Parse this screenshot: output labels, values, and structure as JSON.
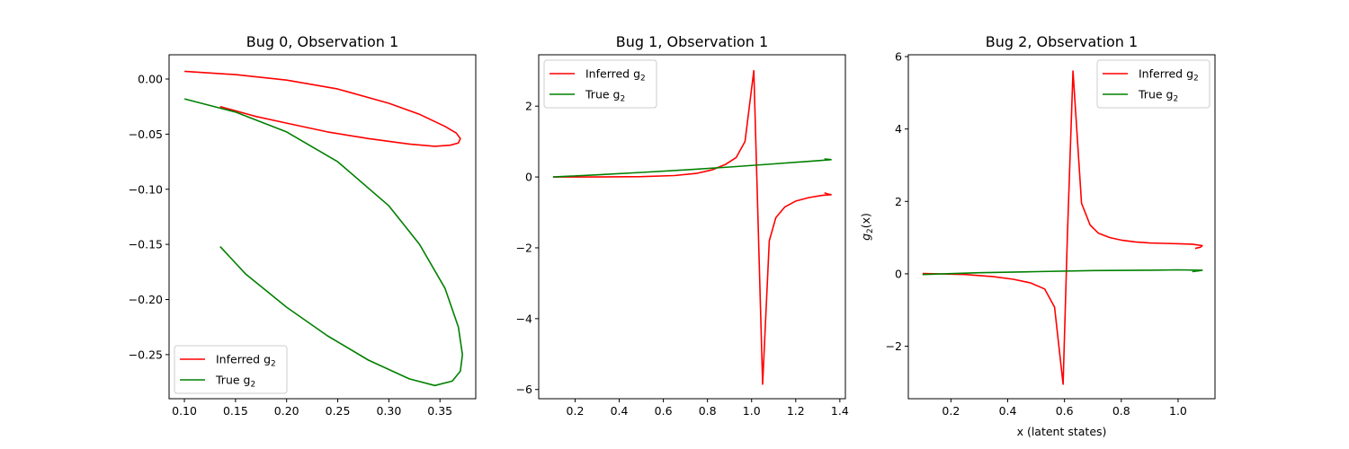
{
  "chart_data": [
    {
      "type": "line",
      "title": "Bug 0, Observation 1",
      "xlabel": "",
      "ylabel": "",
      "xlim": [
        0.085,
        0.385
      ],
      "ylim": [
        -0.29,
        0.022
      ],
      "xticks": [
        0.1,
        0.15,
        0.2,
        0.25,
        0.3,
        0.35
      ],
      "xtick_labels": [
        "0.10",
        "0.15",
        "0.20",
        "0.25",
        "0.30",
        "0.35"
      ],
      "yticks": [
        0.0,
        -0.05,
        -0.1,
        -0.15,
        -0.2,
        -0.25
      ],
      "ytick_labels": [
        "0.00",
        "−0.05",
        "−0.10",
        "−0.15",
        "−0.20",
        "−0.25"
      ],
      "legend": {
        "loc": "lower-left",
        "entries": [
          {
            "label": "Inferred g",
            "sub": "2",
            "color": "#ff0000"
          },
          {
            "label": "True g",
            "sub": "2",
            "color": "#008000"
          }
        ]
      },
      "series": [
        {
          "name": "Inferred g2",
          "color": "#ff0000",
          "x": [
            0.1,
            0.15,
            0.2,
            0.25,
            0.3,
            0.33,
            0.355,
            0.366,
            0.37,
            0.368,
            0.36,
            0.345,
            0.32,
            0.28,
            0.24,
            0.2,
            0.17,
            0.135
          ],
          "y": [
            0.007,
            0.004,
            -0.001,
            -0.009,
            -0.022,
            -0.032,
            -0.043,
            -0.049,
            -0.054,
            -0.058,
            -0.06,
            -0.061,
            -0.059,
            -0.054,
            -0.048,
            -0.04,
            -0.034,
            -0.025
          ]
        },
        {
          "name": "True g2",
          "color": "#008000",
          "x": [
            0.1,
            0.15,
            0.2,
            0.25,
            0.3,
            0.33,
            0.355,
            0.368,
            0.372,
            0.37,
            0.362,
            0.345,
            0.32,
            0.28,
            0.24,
            0.2,
            0.16,
            0.135
          ],
          "y": [
            -0.018,
            -0.03,
            -0.048,
            -0.075,
            -0.115,
            -0.15,
            -0.19,
            -0.225,
            -0.25,
            -0.265,
            -0.274,
            -0.278,
            -0.272,
            -0.255,
            -0.233,
            -0.207,
            -0.177,
            -0.152
          ]
        }
      ]
    },
    {
      "type": "line",
      "title": "Bug 1, Observation 1",
      "xlabel": "",
      "ylabel": "",
      "xlim": [
        0.035,
        1.425
      ],
      "ylim": [
        -6.26,
        3.45
      ],
      "xticks": [
        0.2,
        0.4,
        0.6,
        0.8,
        1.0,
        1.2,
        1.4
      ],
      "xtick_labels": [
        "0.2",
        "0.4",
        "0.6",
        "0.8",
        "1.0",
        "1.2",
        "1.4"
      ],
      "yticks": [
        2,
        0,
        -2,
        -4,
        -6
      ],
      "ytick_labels": [
        "2",
        "0",
        "−2",
        "−4",
        "−6"
      ],
      "legend": {
        "loc": "upper-left",
        "entries": [
          {
            "label": "Inferred g",
            "sub": "2",
            "color": "#ff0000"
          },
          {
            "label": "True g",
            "sub": "2",
            "color": "#008000"
          }
        ]
      },
      "series": [
        {
          "name": "Inferred g2",
          "color": "#ff0000",
          "x": [
            0.1,
            0.3,
            0.5,
            0.65,
            0.75,
            0.82,
            0.88,
            0.93,
            0.97,
            1.01,
            1.05,
            1.08,
            1.11,
            1.15,
            1.2,
            1.26,
            1.32,
            1.36,
            1.345,
            1.33
          ],
          "y": [
            0.0,
            0.0,
            0.01,
            0.04,
            0.1,
            0.2,
            0.35,
            0.55,
            1.0,
            3.0,
            -5.85,
            -1.8,
            -1.15,
            -0.85,
            -0.68,
            -0.58,
            -0.52,
            -0.5,
            -0.48,
            -0.45
          ]
        },
        {
          "name": "True g2",
          "color": "#008000",
          "x": [
            0.1,
            0.3,
            0.5,
            0.7,
            0.9,
            1.1,
            1.3,
            1.36,
            1.35,
            1.33
          ],
          "y": [
            0.0,
            0.06,
            0.13,
            0.2,
            0.28,
            0.37,
            0.46,
            0.49,
            0.5,
            0.51
          ]
        }
      ]
    },
    {
      "type": "line",
      "title": "Bug 2, Observation 1",
      "xlabel": "x (latent states)",
      "ylabel": "g2(x)",
      "xlim": [
        0.05,
        1.13
      ],
      "ylim": [
        -3.45,
        6.05
      ],
      "xticks": [
        0.2,
        0.4,
        0.6,
        0.8,
        1.0
      ],
      "xtick_labels": [
        "0.2",
        "0.4",
        "0.6",
        "0.8",
        "1.0"
      ],
      "yticks": [
        6,
        4,
        2,
        0,
        -2
      ],
      "ytick_labels": [
        "6",
        "4",
        "2",
        "0",
        "−2"
      ],
      "legend": {
        "loc": "upper-right",
        "entries": [
          {
            "label": "Inferred g",
            "sub": "2",
            "color": "#ff0000"
          },
          {
            "label": "True g",
            "sub": "2",
            "color": "#008000"
          }
        ]
      },
      "series": [
        {
          "name": "Inferred g2",
          "color": "#ff0000",
          "x": [
            0.1,
            0.25,
            0.35,
            0.42,
            0.48,
            0.53,
            0.565,
            0.595,
            0.61,
            0.63,
            0.66,
            0.69,
            0.72,
            0.76,
            0.8,
            0.85,
            0.9,
            0.95,
            1.0,
            1.05,
            1.085,
            1.08,
            1.06
          ],
          "y": [
            0.01,
            -0.02,
            -0.08,
            -0.15,
            -0.25,
            -0.42,
            -0.92,
            -3.05,
            1.0,
            5.6,
            1.95,
            1.35,
            1.12,
            1.0,
            0.93,
            0.88,
            0.85,
            0.84,
            0.83,
            0.82,
            0.78,
            0.74,
            0.7
          ]
        },
        {
          "name": "True g2",
          "color": "#008000",
          "x": [
            0.1,
            0.3,
            0.5,
            0.7,
            0.9,
            1.0,
            1.085,
            1.07,
            1.05
          ],
          "y": [
            -0.02,
            0.03,
            0.06,
            0.09,
            0.1,
            0.11,
            0.1,
            0.08,
            0.06
          ]
        }
      ]
    }
  ]
}
